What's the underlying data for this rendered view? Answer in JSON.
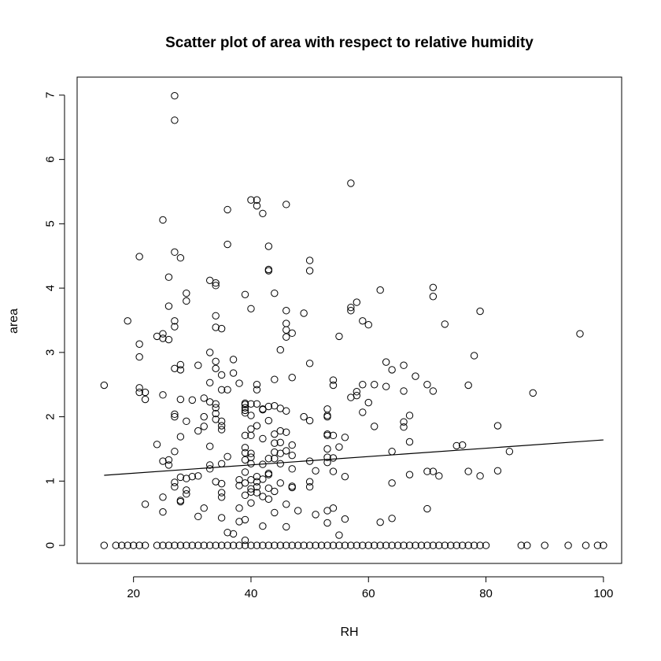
{
  "chart_data": {
    "type": "scatter",
    "title": "Scatter plot of area with respect to relative humidity",
    "xlabel": "RH",
    "ylabel": "area",
    "xlim": [
      10.4,
      103.1
    ],
    "ylim": [
      -0.28,
      7.28
    ],
    "xticks": [
      20,
      40,
      60,
      80,
      100
    ],
    "yticks": [
      0,
      1,
      2,
      3,
      4,
      5,
      6,
      7
    ],
    "grid": false,
    "legend": "none",
    "marker": "open-circle",
    "colors": {
      "points": "#000000",
      "frame": "#000000",
      "background": "#ffffff"
    },
    "trend_line": {
      "x": [
        15,
        100
      ],
      "y": [
        1.09,
        1.64
      ]
    },
    "points": [
      [
        15,
        2.49
      ],
      [
        19,
        3.49
      ],
      [
        21,
        4.49
      ],
      [
        21,
        3.13
      ],
      [
        21,
        2.93
      ],
      [
        21,
        2.45
      ],
      [
        21,
        2.38
      ],
      [
        22,
        2.38
      ],
      [
        22,
        2.27
      ],
      [
        22,
        0.64
      ],
      [
        24,
        3.25
      ],
      [
        24,
        1.57
      ],
      [
        25,
        5.06
      ],
      [
        25,
        3.29
      ],
      [
        25,
        3.22
      ],
      [
        25,
        2.34
      ],
      [
        25,
        1.31
      ],
      [
        25,
        0.75
      ],
      [
        25,
        0.52
      ],
      [
        26,
        4.17
      ],
      [
        26,
        3.72
      ],
      [
        26,
        3.2
      ],
      [
        26,
        1.33
      ],
      [
        26,
        1.25
      ],
      [
        27,
        6.99
      ],
      [
        27,
        6.61
      ],
      [
        27,
        4.56
      ],
      [
        27,
        3.49
      ],
      [
        27,
        3.4
      ],
      [
        27,
        2.75
      ],
      [
        27,
        2.04
      ],
      [
        27,
        2.0
      ],
      [
        27,
        1.46
      ],
      [
        27,
        0.98
      ],
      [
        27,
        0.91
      ],
      [
        28,
        4.47
      ],
      [
        28,
        2.81
      ],
      [
        28,
        2.73
      ],
      [
        28,
        2.27
      ],
      [
        28,
        1.69
      ],
      [
        28,
        1.06
      ],
      [
        28,
        0.7
      ],
      [
        28,
        0.68
      ],
      [
        29,
        3.92
      ],
      [
        29,
        3.8
      ],
      [
        29,
        1.93
      ],
      [
        29,
        1.04
      ],
      [
        29,
        0.86
      ],
      [
        29,
        0.8
      ],
      [
        30,
        1.07
      ],
      [
        30,
        2.26
      ],
      [
        31,
        2.8
      ],
      [
        31,
        1.78
      ],
      [
        31,
        1.08
      ],
      [
        31,
        0.45
      ],
      [
        32,
        2.29
      ],
      [
        32,
        2.0
      ],
      [
        32,
        1.85
      ],
      [
        32,
        0.58
      ],
      [
        33,
        4.12
      ],
      [
        33,
        3.0
      ],
      [
        33,
        2.53
      ],
      [
        33,
        2.23
      ],
      [
        33,
        1.54
      ],
      [
        33,
        1.25
      ],
      [
        33,
        1.19
      ],
      [
        34,
        4.08
      ],
      [
        34,
        4.04
      ],
      [
        34,
        3.57
      ],
      [
        34,
        3.39
      ],
      [
        34,
        2.86
      ],
      [
        34,
        2.75
      ],
      [
        34,
        2.2
      ],
      [
        34,
        2.14
      ],
      [
        34,
        2.05
      ],
      [
        34,
        1.96
      ],
      [
        34,
        0.99
      ],
      [
        35,
        3.37
      ],
      [
        35,
        2.65
      ],
      [
        35,
        2.42
      ],
      [
        35,
        1.93
      ],
      [
        35,
        1.86
      ],
      [
        35,
        1.8
      ],
      [
        35,
        1.27
      ],
      [
        35,
        0.96
      ],
      [
        35,
        0.82
      ],
      [
        35,
        0.75
      ],
      [
        35,
        0.43
      ],
      [
        36,
        5.22
      ],
      [
        36,
        4.68
      ],
      [
        36,
        2.42
      ],
      [
        36,
        1.38
      ],
      [
        36,
        0.2
      ],
      [
        37,
        2.89
      ],
      [
        37,
        2.68
      ],
      [
        37,
        0.18
      ],
      [
        38,
        2.52
      ],
      [
        38,
        1.02
      ],
      [
        38,
        0.93
      ],
      [
        38,
        0.58
      ],
      [
        38,
        0.37
      ],
      [
        39,
        3.9
      ],
      [
        39,
        2.21
      ],
      [
        39,
        2.19
      ],
      [
        39,
        2.14
      ],
      [
        39,
        2.1
      ],
      [
        39,
        2.06
      ],
      [
        39,
        1.71
      ],
      [
        39,
        1.52
      ],
      [
        39,
        1.44
      ],
      [
        39,
        1.33
      ],
      [
        39,
        1.14
      ],
      [
        39,
        0.97
      ],
      [
        39,
        0.78
      ],
      [
        39,
        0.4
      ],
      [
        39,
        0.08
      ],
      [
        40,
        5.37
      ],
      [
        40,
        3.68
      ],
      [
        40,
        2.2
      ],
      [
        40,
        2.02
      ],
      [
        40,
        1.81
      ],
      [
        40,
        1.71
      ],
      [
        40,
        1.43
      ],
      [
        40,
        1.37
      ],
      [
        40,
        1.27
      ],
      [
        40,
        1.02
      ],
      [
        40,
        0.88
      ],
      [
        40,
        0.83
      ],
      [
        40,
        0.66
      ],
      [
        41,
        5.28
      ],
      [
        41,
        5.37
      ],
      [
        41,
        2.5
      ],
      [
        41,
        2.42
      ],
      [
        41,
        2.2
      ],
      [
        41,
        1.86
      ],
      [
        41,
        1.07
      ],
      [
        41,
        0.99
      ],
      [
        41,
        0.91
      ],
      [
        41,
        0.82
      ],
      [
        42,
        5.16
      ],
      [
        42,
        2.12
      ],
      [
        42,
        2.11
      ],
      [
        42,
        1.66
      ],
      [
        42,
        1.26
      ],
      [
        42,
        1.03
      ],
      [
        42,
        0.76
      ],
      [
        42,
        0.3
      ],
      [
        43,
        4.65
      ],
      [
        43,
        4.29
      ],
      [
        43,
        4.27
      ],
      [
        43,
        2.16
      ],
      [
        43,
        1.94
      ],
      [
        43,
        1.35
      ],
      [
        43,
        1.12
      ],
      [
        43,
        1.1
      ],
      [
        43,
        0.89
      ],
      [
        43,
        0.72
      ],
      [
        44,
        3.92
      ],
      [
        44,
        2.58
      ],
      [
        44,
        2.17
      ],
      [
        44,
        1.73
      ],
      [
        44,
        1.59
      ],
      [
        44,
        1.45
      ],
      [
        44,
        1.35
      ],
      [
        44,
        0.84
      ],
      [
        44,
        0.51
      ],
      [
        45,
        3.04
      ],
      [
        45,
        2.13
      ],
      [
        45,
        1.78
      ],
      [
        45,
        1.6
      ],
      [
        45,
        1.43
      ],
      [
        45,
        1.27
      ],
      [
        45,
        0.97
      ],
      [
        46,
        5.3
      ],
      [
        46,
        3.65
      ],
      [
        46,
        3.45
      ],
      [
        46,
        3.35
      ],
      [
        46,
        3.24
      ],
      [
        46,
        2.09
      ],
      [
        46,
        1.76
      ],
      [
        46,
        1.47
      ],
      [
        46,
        0.64
      ],
      [
        46,
        0.29
      ],
      [
        47,
        3.3
      ],
      [
        47,
        2.61
      ],
      [
        47,
        1.56
      ],
      [
        47,
        1.4
      ],
      [
        47,
        1.19
      ],
      [
        47,
        0.92
      ],
      [
        47,
        0.9
      ],
      [
        48,
        0.54
      ],
      [
        49,
        3.61
      ],
      [
        49,
        2.0
      ],
      [
        50,
        4.43
      ],
      [
        50,
        4.27
      ],
      [
        50,
        2.83
      ],
      [
        50,
        1.94
      ],
      [
        50,
        1.31
      ],
      [
        50,
        0.99
      ],
      [
        50,
        0.91
      ],
      [
        51,
        1.16
      ],
      [
        51,
        0.48
      ],
      [
        53,
        2.12
      ],
      [
        53,
        2.02
      ],
      [
        53,
        2.0
      ],
      [
        53,
        1.73
      ],
      [
        53,
        1.71
      ],
      [
        53,
        1.5
      ],
      [
        53,
        1.37
      ],
      [
        53,
        1.29
      ],
      [
        53,
        0.54
      ],
      [
        53,
        0.35
      ],
      [
        54,
        2.57
      ],
      [
        54,
        2.49
      ],
      [
        54,
        1.71
      ],
      [
        54,
        1.36
      ],
      [
        54,
        1.15
      ],
      [
        54,
        0.58
      ],
      [
        55,
        3.25
      ],
      [
        55,
        1.53
      ],
      [
        55,
        0.16
      ],
      [
        56,
        1.68
      ],
      [
        56,
        1.07
      ],
      [
        56,
        0.41
      ],
      [
        57,
        5.63
      ],
      [
        57,
        3.7
      ],
      [
        57,
        3.65
      ],
      [
        57,
        2.3
      ],
      [
        58,
        3.78
      ],
      [
        58,
        2.39
      ],
      [
        58,
        2.33
      ],
      [
        59,
        3.49
      ],
      [
        59,
        2.5
      ],
      [
        59,
        2.07
      ],
      [
        60,
        3.43
      ],
      [
        60,
        2.22
      ],
      [
        61,
        2.5
      ],
      [
        61,
        1.85
      ],
      [
        62,
        3.97
      ],
      [
        62,
        0.36
      ],
      [
        63,
        2.85
      ],
      [
        63,
        2.47
      ],
      [
        64,
        2.73
      ],
      [
        64,
        1.46
      ],
      [
        64,
        0.97
      ],
      [
        64,
        0.42
      ],
      [
        66,
        2.8
      ],
      [
        66,
        2.4
      ],
      [
        66,
        1.92
      ],
      [
        66,
        1.84
      ],
      [
        67,
        2.02
      ],
      [
        67,
        1.61
      ],
      [
        67,
        1.1
      ],
      [
        68,
        2.63
      ],
      [
        70,
        2.5
      ],
      [
        70,
        1.15
      ],
      [
        70,
        0.57
      ],
      [
        71,
        4.01
      ],
      [
        71,
        3.87
      ],
      [
        71,
        2.4
      ],
      [
        71,
        1.15
      ],
      [
        72,
        1.08
      ],
      [
        73,
        3.44
      ],
      [
        75,
        1.55
      ],
      [
        76,
        1.56
      ],
      [
        77,
        2.49
      ],
      [
        77,
        1.15
      ],
      [
        78,
        2.95
      ],
      [
        79,
        3.64
      ],
      [
        79,
        1.08
      ],
      [
        82,
        1.86
      ],
      [
        82,
        1.16
      ],
      [
        84,
        1.46
      ],
      [
        88,
        2.37
      ],
      [
        96,
        3.29
      ],
      [
        15,
        0
      ],
      [
        17,
        0
      ],
      [
        18,
        0
      ],
      [
        19,
        0
      ],
      [
        20,
        0
      ],
      [
        21,
        0
      ],
      [
        22,
        0
      ],
      [
        24,
        0
      ],
      [
        25,
        0
      ],
      [
        26,
        0
      ],
      [
        27,
        0
      ],
      [
        28,
        0
      ],
      [
        29,
        0
      ],
      [
        30,
        0
      ],
      [
        31,
        0
      ],
      [
        32,
        0
      ],
      [
        33,
        0
      ],
      [
        34,
        0
      ],
      [
        35,
        0
      ],
      [
        36,
        0
      ],
      [
        37,
        0
      ],
      [
        38,
        0
      ],
      [
        39,
        0
      ],
      [
        40,
        0
      ],
      [
        41,
        0
      ],
      [
        42,
        0
      ],
      [
        43,
        0
      ],
      [
        44,
        0
      ],
      [
        45,
        0
      ],
      [
        46,
        0
      ],
      [
        47,
        0
      ],
      [
        48,
        0
      ],
      [
        49,
        0
      ],
      [
        50,
        0
      ],
      [
        51,
        0
      ],
      [
        52,
        0
      ],
      [
        53,
        0
      ],
      [
        54,
        0
      ],
      [
        55,
        0
      ],
      [
        56,
        0
      ],
      [
        57,
        0
      ],
      [
        58,
        0
      ],
      [
        59,
        0
      ],
      [
        60,
        0
      ],
      [
        61,
        0
      ],
      [
        62,
        0
      ],
      [
        63,
        0
      ],
      [
        64,
        0
      ],
      [
        65,
        0
      ],
      [
        66,
        0
      ],
      [
        67,
        0
      ],
      [
        68,
        0
      ],
      [
        69,
        0
      ],
      [
        70,
        0
      ],
      [
        71,
        0
      ],
      [
        72,
        0
      ],
      [
        73,
        0
      ],
      [
        74,
        0
      ],
      [
        75,
        0
      ],
      [
        76,
        0
      ],
      [
        77,
        0
      ],
      [
        78,
        0
      ],
      [
        79,
        0
      ],
      [
        80,
        0
      ],
      [
        86,
        0
      ],
      [
        87,
        0
      ],
      [
        90,
        0
      ],
      [
        94,
        0
      ],
      [
        97,
        0
      ],
      [
        99,
        0
      ],
      [
        100,
        0
      ]
    ]
  }
}
